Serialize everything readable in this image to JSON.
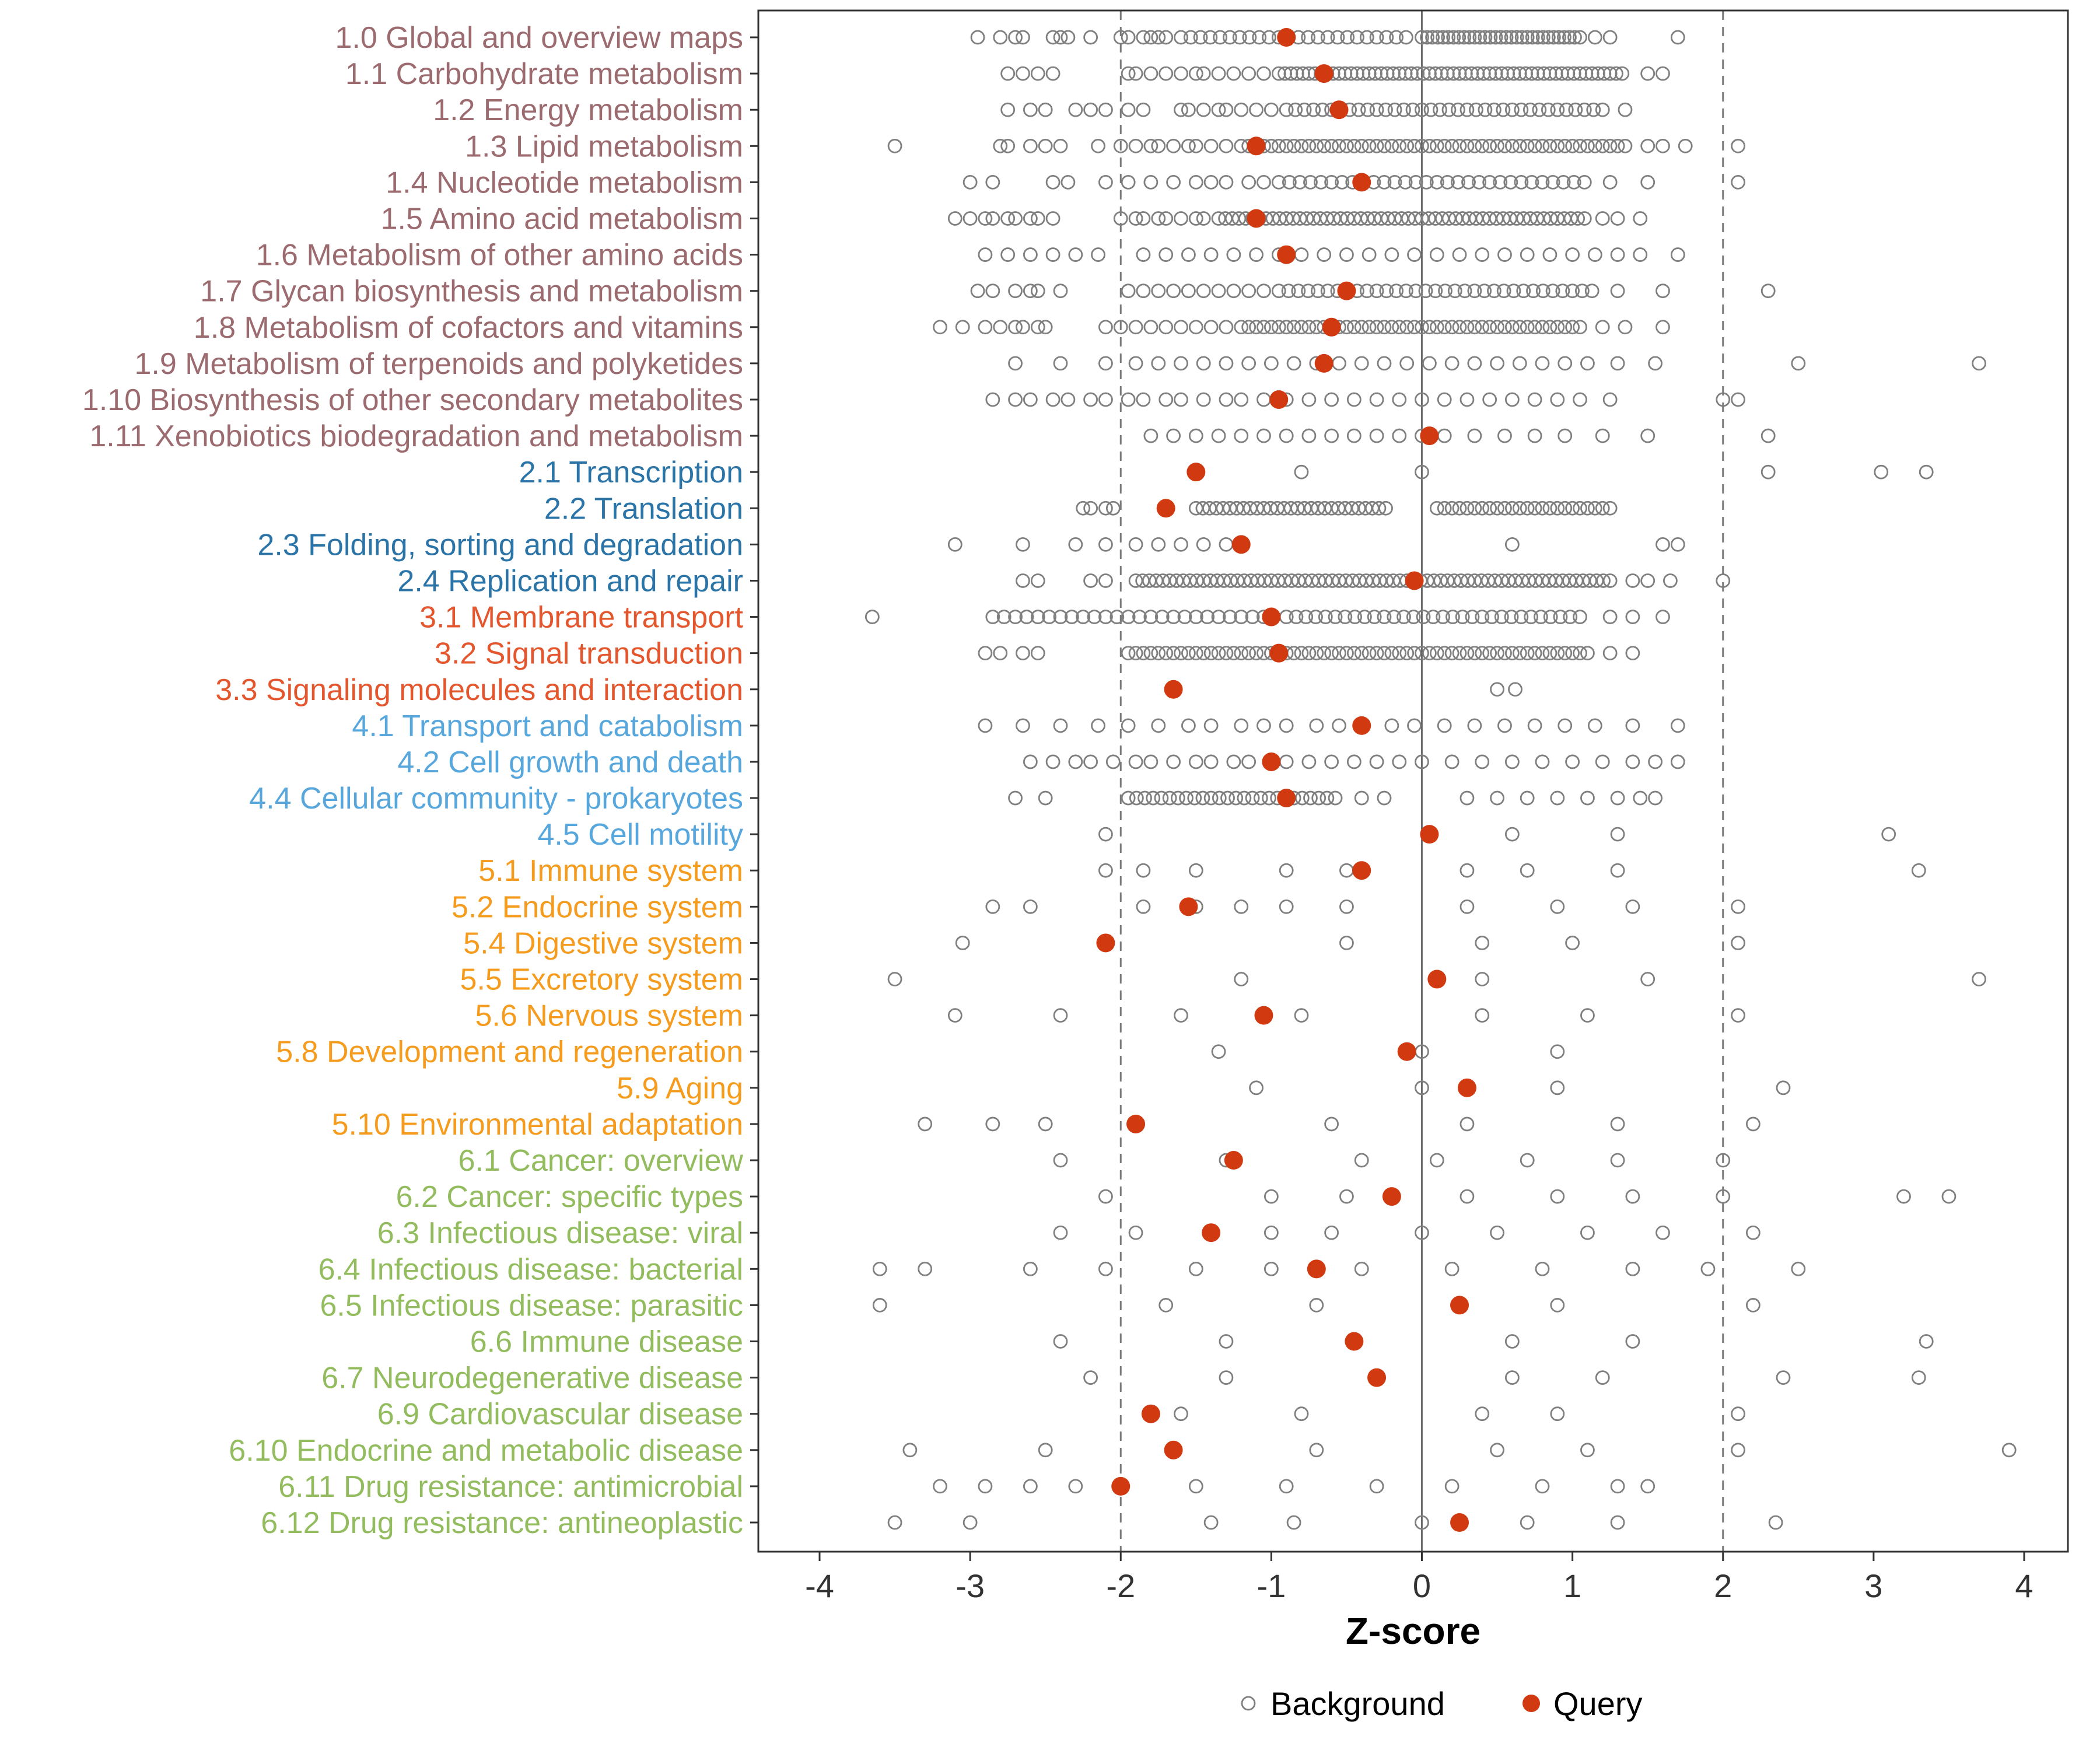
{
  "chart_data": {
    "type": "scatter",
    "orientation": "horizontal-dotplot",
    "title": "",
    "xlabel": "Z-score",
    "xlim": [
      -4.45,
      4.3
    ],
    "x_ticks": [
      -4,
      -3,
      -2,
      -1,
      0,
      1,
      2,
      3,
      4
    ],
    "grid": false,
    "legend_position": "bottom",
    "legend": [
      "Background",
      "Query"
    ],
    "ref_lines": {
      "dashed": [
        -2,
        2
      ],
      "solid": [
        0
      ]
    },
    "colors": {
      "background_stroke": "#7F7F7F",
      "query_fill": "#D13A10",
      "ref_line": "#7A7A7A",
      "zero_line": "#4D4D4D",
      "panel_border": "#333333",
      "axis_text": "#333333",
      "axis_title": "#000000",
      "groups": {
        "1": "#9C6B70",
        "2": "#2B74A8",
        "3": "#E4572E",
        "4": "#57A7DC",
        "5": "#F59B1E",
        "6": "#92BC5E"
      }
    },
    "rows": [
      {
        "label": "1.0 Global and overview maps",
        "group": "1",
        "query": -0.9,
        "bg_pts": [
          -2.95,
          -2.8,
          -2.7,
          -2.65,
          -2.45,
          -2.4,
          -2.35,
          -2.2,
          -2.0,
          -1.95,
          -1.85,
          -1.8,
          -1.75,
          -1.7,
          1.15,
          1.25,
          1.7
        ],
        "bg_runs": [
          [
            -1.6,
            -0.05,
            0.065
          ],
          [
            0.0,
            1.05,
            0.035
          ]
        ]
      },
      {
        "label": "1.1 Carbohydrate metabolism",
        "group": "1",
        "query": -0.65,
        "bg_pts": [
          -2.75,
          -2.65,
          -2.55,
          -2.45,
          -1.95,
          -1.9,
          -1.8,
          -1.7,
          -1.6,
          -1.5,
          -1.45,
          -1.35,
          -1.25,
          -1.15,
          -1.05,
          1.5,
          1.6
        ],
        "bg_runs": [
          [
            -0.95,
            1.35,
            0.04
          ]
        ]
      },
      {
        "label": "1.2 Energy metabolism",
        "group": "1",
        "query": -0.55,
        "bg_pts": [
          -2.75,
          -2.6,
          -2.5,
          -2.3,
          -2.2,
          -2.1,
          -1.95,
          -1.85,
          -1.6,
          -1.55,
          -1.45,
          -1.35,
          -1.3,
          -1.2,
          -1.1,
          -1.0,
          1.35
        ],
        "bg_runs": [
          [
            -0.9,
            1.2,
            0.06
          ]
        ]
      },
      {
        "label": "1.3 Lipid metabolism",
        "group": "1",
        "query": -1.1,
        "bg_pts": [
          -3.5,
          -2.8,
          -2.75,
          -2.6,
          -2.5,
          -2.4,
          -2.15,
          -2.0,
          -1.9,
          -1.8,
          -1.75,
          -1.65,
          -1.55,
          -1.5,
          -1.4,
          -1.3,
          1.5,
          1.6,
          1.75,
          2.1
        ],
        "bg_runs": [
          [
            -1.2,
            1.35,
            0.05
          ]
        ]
      },
      {
        "label": "1.4 Nucleotide metabolism",
        "group": "1",
        "query": -0.4,
        "bg_pts": [
          -3.0,
          -2.85,
          -2.45,
          -2.35,
          -2.1,
          -1.95,
          -1.8,
          -1.65,
          -1.5,
          -1.4,
          -1.3,
          -1.15,
          -1.05,
          1.25,
          1.5,
          2.1
        ],
        "bg_runs": [
          [
            -0.95,
            1.1,
            0.07
          ]
        ]
      },
      {
        "label": "1.5 Amino acid metabolism",
        "group": "1",
        "query": -1.1,
        "bg_pts": [
          -3.1,
          -3.0,
          -2.9,
          -2.85,
          -2.75,
          -2.7,
          -2.6,
          -2.55,
          -2.45,
          -2.0,
          -1.9,
          -1.85,
          -1.75,
          -1.7,
          -1.6,
          -1.5,
          -1.45,
          1.2,
          1.3,
          1.45
        ],
        "bg_runs": [
          [
            -1.35,
            1.1,
            0.045
          ]
        ]
      },
      {
        "label": "1.6 Metabolism of other amino acids",
        "group": "1",
        "query": -0.9,
        "bg_pts": [
          -2.9,
          -2.75,
          -2.6,
          -2.45,
          -2.3,
          -2.15,
          -1.85,
          -1.7,
          -1.55,
          -1.4,
          -1.25,
          -1.1,
          -0.95,
          -0.8,
          -0.65,
          -0.5,
          -0.35,
          -0.2,
          -0.05,
          0.1,
          0.25,
          0.4,
          0.55,
          0.7,
          0.85,
          1.0,
          1.15,
          1.3,
          1.45,
          1.7
        ],
        "bg_runs": []
      },
      {
        "label": "1.7 Glycan biosynthesis and metabolism",
        "group": "1",
        "query": -0.5,
        "bg_pts": [
          -2.95,
          -2.85,
          -2.7,
          -2.6,
          -2.55,
          -2.4,
          -1.95,
          -1.85,
          -1.75,
          -1.65,
          -1.55,
          -1.45,
          -1.35,
          -1.25,
          -1.15,
          -1.05,
          1.3,
          1.6,
          2.3
        ],
        "bg_runs": [
          [
            -0.95,
            1.15,
            0.065
          ]
        ]
      },
      {
        "label": "1.8 Metabolism of cofactors and vitamins",
        "group": "1",
        "query": -0.6,
        "bg_pts": [
          -3.2,
          -3.05,
          -2.9,
          -2.8,
          -2.7,
          -2.65,
          -2.55,
          -2.5,
          -2.1,
          -2.0,
          -1.9,
          -1.8,
          -1.7,
          -1.6,
          -1.5,
          -1.4,
          -1.3,
          1.2,
          1.35,
          1.6
        ],
        "bg_runs": [
          [
            -1.2,
            1.05,
            0.05
          ]
        ]
      },
      {
        "label": "1.9 Metabolism of terpenoids and polyketides",
        "group": "1",
        "query": -0.65,
        "bg_pts": [
          -2.7,
          -2.4,
          -2.1,
          -1.9,
          -1.75,
          -1.6,
          -1.45,
          -1.3,
          -1.15,
          -1.0,
          -0.85,
          -0.7,
          -0.55,
          -0.4,
          -0.25,
          -0.1,
          0.05,
          0.2,
          0.35,
          0.5,
          0.65,
          0.8,
          0.95,
          1.1,
          1.3,
          1.55,
          2.5,
          3.7
        ],
        "bg_runs": []
      },
      {
        "label": "1.10 Biosynthesis of other secondary metabolites",
        "group": "1",
        "query": -0.95,
        "bg_pts": [
          -2.85,
          -2.7,
          -2.6,
          -2.45,
          -2.35,
          -2.2,
          -2.1,
          -1.95,
          -1.85,
          -1.7,
          -1.6,
          -1.45,
          -1.3,
          -1.2,
          -1.05,
          -0.9,
          -0.75,
          -0.6,
          -0.45,
          -0.3,
          -0.15,
          0.0,
          0.15,
          0.3,
          0.45,
          0.6,
          0.75,
          0.9,
          1.05,
          1.25,
          2.0,
          2.1
        ],
        "bg_runs": []
      },
      {
        "label": "1.11 Xenobiotics biodegradation and metabolism",
        "group": "1",
        "query": 0.05,
        "bg_pts": [
          -1.8,
          -1.65,
          -1.5,
          -1.35,
          -1.2,
          -1.05,
          -0.9,
          -0.75,
          -0.6,
          -0.45,
          -0.3,
          -0.15,
          0.0,
          0.15,
          0.35,
          0.55,
          0.75,
          0.95,
          1.2,
          1.5,
          2.3
        ],
        "bg_runs": []
      },
      {
        "label": "2.1 Transcription",
        "group": "2",
        "query": -1.5,
        "bg_pts": [
          -0.8,
          0.0,
          2.3,
          3.05,
          3.35
        ],
        "bg_runs": []
      },
      {
        "label": "2.2 Translation",
        "group": "2",
        "query": -1.7,
        "bg_pts": [
          -2.25,
          -2.2,
          -2.1,
          -2.05
        ],
        "bg_runs": [
          [
            -1.5,
            -0.2,
            0.045
          ],
          [
            0.1,
            1.25,
            0.05
          ]
        ]
      },
      {
        "label": "2.3 Folding, sorting and degradation",
        "group": "2",
        "query": -1.2,
        "bg_pts": [
          -3.1,
          -2.65,
          -2.3,
          -2.1,
          -1.9,
          -1.75,
          -1.6,
          -1.45,
          -1.3,
          0.6,
          1.6,
          1.7
        ],
        "bg_runs": []
      },
      {
        "label": "2.4 Replication and repair",
        "group": "2",
        "query": -0.05,
        "bg_pts": [
          -2.65,
          -2.55,
          -2.2,
          -2.1,
          1.4,
          1.5,
          1.65,
          2.0
        ],
        "bg_runs": [
          [
            -1.9,
            1.25,
            0.045
          ]
        ]
      },
      {
        "label": "3.1 Membrane transport",
        "group": "3",
        "query": -1.0,
        "bg_pts": [
          -3.65,
          1.25,
          1.4,
          1.6
        ],
        "bg_runs": [
          [
            -2.85,
            -1.0,
            0.075
          ],
          [
            -0.9,
            1.1,
            0.065
          ]
        ]
      },
      {
        "label": "3.2 Signal transduction",
        "group": "3",
        "query": -0.95,
        "bg_pts": [
          -2.9,
          -2.8,
          -2.65,
          -2.55,
          1.25,
          1.4
        ],
        "bg_runs": [
          [
            -1.95,
            1.1,
            0.05
          ]
        ]
      },
      {
        "label": "3.3 Signaling molecules and interaction",
        "group": "3",
        "query": -1.65,
        "bg_pts": [
          0.5,
          0.62
        ],
        "bg_runs": []
      },
      {
        "label": "4.1 Transport and catabolism",
        "group": "4",
        "query": -0.4,
        "bg_pts": [
          -2.9,
          -2.65,
          -2.4,
          -2.15,
          -1.95,
          -1.75,
          -1.55,
          -1.4,
          -1.2,
          -1.05,
          -0.9,
          -0.7,
          -0.55,
          -0.4,
          -0.2,
          -0.05,
          0.15,
          0.35,
          0.55,
          0.75,
          0.95,
          1.15,
          1.4,
          1.7
        ],
        "bg_runs": []
      },
      {
        "label": "4.2 Cell growth and death",
        "group": "4",
        "query": -1.0,
        "bg_pts": [
          -2.6,
          -2.45,
          -2.3,
          -2.2,
          -2.05,
          -1.9,
          -1.8,
          -1.65,
          -1.5,
          -1.4,
          -1.25,
          -1.15,
          -1.0,
          -0.9,
          -0.75,
          -0.6,
          -0.45,
          -0.3,
          -0.15,
          0.0,
          0.2,
          0.4,
          0.6,
          0.8,
          1.0,
          1.2,
          1.4,
          1.55,
          1.7
        ],
        "bg_runs": []
      },
      {
        "label": "4.4 Cellular community - prokaryotes",
        "group": "4",
        "query": -0.9,
        "bg_pts": [
          -2.7,
          -2.5,
          -0.4,
          -0.25,
          0.3,
          0.5,
          0.7,
          0.9,
          1.1,
          1.3,
          1.45,
          1.55
        ],
        "bg_runs": [
          [
            -1.95,
            -0.55,
            0.055
          ]
        ]
      },
      {
        "label": "4.5 Cell motility",
        "group": "4",
        "query": 0.05,
        "bg_pts": [
          -2.1,
          0.6,
          1.3,
          3.1
        ],
        "bg_runs": []
      },
      {
        "label": "5.1 Immune system",
        "group": "5",
        "query": -0.4,
        "bg_pts": [
          -2.1,
          -1.85,
          -1.5,
          -0.9,
          -0.5,
          0.3,
          0.7,
          1.3,
          3.3
        ],
        "bg_runs": []
      },
      {
        "label": "5.2 Endocrine system",
        "group": "5",
        "query": -1.55,
        "bg_pts": [
          -2.85,
          -2.6,
          -1.85,
          -1.5,
          -1.2,
          -0.9,
          -0.5,
          0.3,
          0.9,
          1.4,
          2.1
        ],
        "bg_runs": []
      },
      {
        "label": "5.4 Digestive system",
        "group": "5",
        "query": -2.1,
        "bg_pts": [
          -3.05,
          -0.5,
          0.4,
          1.0,
          2.1
        ],
        "bg_runs": []
      },
      {
        "label": "5.5 Excretory system",
        "group": "5",
        "query": 0.1,
        "bg_pts": [
          -3.5,
          -1.2,
          0.4,
          1.5,
          3.7
        ],
        "bg_runs": []
      },
      {
        "label": "5.6 Nervous system",
        "group": "5",
        "query": -1.05,
        "bg_pts": [
          -3.1,
          -2.4,
          -1.6,
          -0.8,
          0.4,
          1.1,
          2.1
        ],
        "bg_runs": []
      },
      {
        "label": "5.8 Development and regeneration",
        "group": "5",
        "query": -0.1,
        "bg_pts": [
          -1.35,
          0.0,
          0.9
        ],
        "bg_runs": []
      },
      {
        "label": "5.9 Aging",
        "group": "5",
        "query": 0.3,
        "bg_pts": [
          -1.1,
          0.0,
          0.9,
          2.4
        ],
        "bg_runs": []
      },
      {
        "label": "5.10 Environmental adaptation",
        "group": "5",
        "query": -1.9,
        "bg_pts": [
          -3.3,
          -2.85,
          -2.5,
          -0.6,
          0.3,
          1.3,
          2.2
        ],
        "bg_runs": []
      },
      {
        "label": "6.1 Cancer: overview",
        "group": "6",
        "query": -1.25,
        "bg_pts": [
          -2.4,
          -1.3,
          -0.4,
          0.1,
          0.7,
          1.3,
          2.0
        ],
        "bg_runs": []
      },
      {
        "label": "6.2 Cancer: specific types",
        "group": "6",
        "query": -0.2,
        "bg_pts": [
          -2.1,
          -1.0,
          -0.5,
          0.3,
          0.9,
          1.4,
          2.0,
          3.2,
          3.5
        ],
        "bg_runs": []
      },
      {
        "label": "6.3 Infectious disease: viral",
        "group": "6",
        "query": -1.4,
        "bg_pts": [
          -2.4,
          -1.9,
          -1.0,
          -0.6,
          0.0,
          0.5,
          1.1,
          1.6,
          2.2
        ],
        "bg_runs": []
      },
      {
        "label": "6.4 Infectious disease: bacterial",
        "group": "6",
        "query": -0.7,
        "bg_pts": [
          -3.6,
          -3.3,
          -2.6,
          -2.1,
          -1.5,
          -1.0,
          -0.4,
          0.2,
          0.8,
          1.4,
          1.9,
          2.5
        ],
        "bg_runs": []
      },
      {
        "label": "6.5 Infectious disease: parasitic",
        "group": "6",
        "query": 0.25,
        "bg_pts": [
          -3.6,
          -1.7,
          -0.7,
          0.9,
          2.2
        ],
        "bg_runs": []
      },
      {
        "label": "6.6 Immune disease",
        "group": "6",
        "query": -0.45,
        "bg_pts": [
          -2.4,
          -1.3,
          0.6,
          1.4,
          3.35
        ],
        "bg_runs": []
      },
      {
        "label": "6.7 Neurodegenerative disease",
        "group": "6",
        "query": -0.3,
        "bg_pts": [
          -2.2,
          -1.3,
          0.6,
          1.2,
          2.4,
          3.3
        ],
        "bg_runs": []
      },
      {
        "label": "6.9 Cardiovascular disease",
        "group": "6",
        "query": -1.8,
        "bg_pts": [
          -1.6,
          -0.8,
          0.4,
          0.9,
          2.1
        ],
        "bg_runs": []
      },
      {
        "label": "6.10 Endocrine and metabolic disease",
        "group": "6",
        "query": -1.65,
        "bg_pts": [
          -3.4,
          -2.5,
          -0.7,
          0.5,
          1.1,
          2.1,
          3.9
        ],
        "bg_runs": []
      },
      {
        "label": "6.11 Drug resistance: antimicrobial",
        "group": "6",
        "query": -2.0,
        "bg_pts": [
          -3.2,
          -2.9,
          -2.6,
          -2.3,
          -1.5,
          -0.9,
          -0.3,
          0.2,
          0.8,
          1.3,
          1.5
        ],
        "bg_runs": []
      },
      {
        "label": "6.12 Drug resistance: antineoplastic",
        "group": "6",
        "query": 0.25,
        "bg_pts": [
          -3.5,
          -3.0,
          -1.4,
          -0.85,
          0.0,
          0.7,
          1.3,
          2.35
        ],
        "bg_runs": []
      }
    ]
  }
}
